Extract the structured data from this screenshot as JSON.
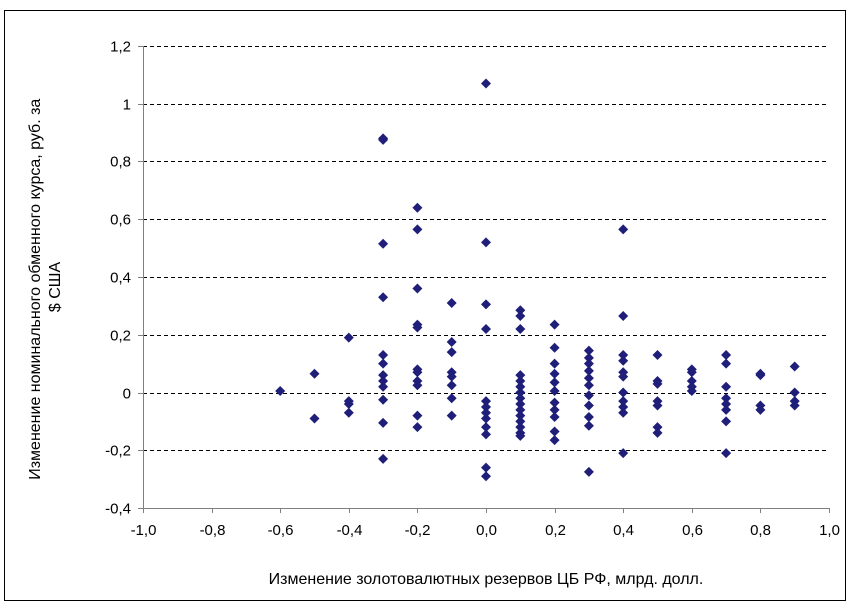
{
  "chart_data": {
    "type": "scatter",
    "title": "",
    "xlabel": "Изменение золотовалютных резервов ЦБ РФ, млрд. долл.",
    "ylabel_lines": [
      "Изменение номинального обменного курса, руб. за",
      "$ США"
    ],
    "xlim": [
      -1.0,
      1.0
    ],
    "ylim": [
      -0.4,
      1.2
    ],
    "x_ticks": [
      -1.0,
      -0.8,
      -0.6,
      -0.4,
      -0.2,
      0.0,
      0.2,
      0.4,
      0.6,
      0.8,
      1.0
    ],
    "x_tick_labels": [
      "-1,0",
      "-0,8",
      "-0,6",
      "-0,4",
      "-0,2",
      "0,0",
      "0,2",
      "0,4",
      "0,6",
      "0,8",
      "1,0"
    ],
    "y_ticks": [
      -0.4,
      -0.2,
      0.0,
      0.2,
      0.4,
      0.6,
      0.8,
      1.0,
      1.2
    ],
    "y_tick_labels": [
      "-0,4",
      "-0,2",
      "0",
      "0,2",
      "0,4",
      "0,6",
      "0,8",
      "1",
      "1,2"
    ],
    "grid": "horizontal-dashed",
    "marker": "diamond",
    "colors": {
      "marker": "#1f1f7a",
      "grid": "#000000",
      "axis": "#808080",
      "frame": "#000000"
    },
    "points": [
      [
        -0.6,
        0.005
      ],
      [
        -0.5,
        0.065
      ],
      [
        -0.5,
        -0.09
      ],
      [
        -0.4,
        0.19
      ],
      [
        -0.4,
        -0.03
      ],
      [
        -0.4,
        -0.04
      ],
      [
        -0.4,
        -0.07
      ],
      [
        -0.3,
        0.88
      ],
      [
        -0.3,
        0.875
      ],
      [
        -0.3,
        0.515
      ],
      [
        -0.3,
        0.33
      ],
      [
        -0.3,
        0.13
      ],
      [
        -0.3,
        0.1
      ],
      [
        -0.3,
        0.06
      ],
      [
        -0.3,
        0.04
      ],
      [
        -0.3,
        0.02
      ],
      [
        -0.3,
        -0.025
      ],
      [
        -0.3,
        -0.105
      ],
      [
        -0.3,
        -0.23
      ],
      [
        -0.2,
        0.64
      ],
      [
        -0.2,
        0.565
      ],
      [
        -0.2,
        0.36
      ],
      [
        -0.2,
        0.235
      ],
      [
        -0.2,
        0.225
      ],
      [
        -0.2,
        0.08
      ],
      [
        -0.2,
        0.07
      ],
      [
        -0.2,
        0.04
      ],
      [
        -0.2,
        0.025
      ],
      [
        -0.2,
        -0.08
      ],
      [
        -0.2,
        -0.12
      ],
      [
        -0.1,
        0.31
      ],
      [
        -0.1,
        0.175
      ],
      [
        -0.1,
        0.14
      ],
      [
        -0.1,
        0.07
      ],
      [
        -0.1,
        0.055
      ],
      [
        -0.1,
        0.025
      ],
      [
        -0.1,
        -0.02
      ],
      [
        -0.1,
        -0.08
      ],
      [
        0.0,
        1.07
      ],
      [
        0.0,
        0.52
      ],
      [
        0.0,
        0.305
      ],
      [
        0.0,
        0.22
      ],
      [
        0.0,
        -0.03
      ],
      [
        0.0,
        -0.05
      ],
      [
        0.0,
        -0.07
      ],
      [
        0.0,
        -0.09
      ],
      [
        0.0,
        -0.12
      ],
      [
        0.0,
        -0.145
      ],
      [
        0.0,
        -0.26
      ],
      [
        0.0,
        -0.29
      ],
      [
        0.1,
        0.285
      ],
      [
        0.1,
        0.265
      ],
      [
        0.1,
        0.22
      ],
      [
        0.1,
        0.06
      ],
      [
        0.1,
        0.04
      ],
      [
        0.1,
        0.02
      ],
      [
        0.1,
        0.0
      ],
      [
        0.1,
        -0.02
      ],
      [
        0.1,
        -0.04
      ],
      [
        0.1,
        -0.06
      ],
      [
        0.1,
        -0.08
      ],
      [
        0.1,
        -0.1
      ],
      [
        0.1,
        -0.12
      ],
      [
        0.1,
        -0.14
      ],
      [
        0.1,
        -0.15
      ],
      [
        0.2,
        0.235
      ],
      [
        0.2,
        0.155
      ],
      [
        0.2,
        0.1
      ],
      [
        0.2,
        0.065
      ],
      [
        0.2,
        0.035
      ],
      [
        0.2,
        0.005
      ],
      [
        0.2,
        -0.035
      ],
      [
        0.2,
        -0.06
      ],
      [
        0.2,
        -0.085
      ],
      [
        0.2,
        -0.135
      ],
      [
        0.2,
        -0.165
      ],
      [
        0.3,
        0.145
      ],
      [
        0.3,
        0.12
      ],
      [
        0.3,
        0.1
      ],
      [
        0.3,
        0.075
      ],
      [
        0.3,
        0.05
      ],
      [
        0.3,
        0.025
      ],
      [
        0.3,
        -0.01
      ],
      [
        0.3,
        -0.045
      ],
      [
        0.3,
        -0.085
      ],
      [
        0.3,
        -0.115
      ],
      [
        0.3,
        -0.275
      ],
      [
        0.4,
        0.565
      ],
      [
        0.4,
        0.265
      ],
      [
        0.4,
        0.13
      ],
      [
        0.4,
        0.11
      ],
      [
        0.4,
        0.07
      ],
      [
        0.4,
        0.055
      ],
      [
        0.4,
        0.0
      ],
      [
        0.4,
        -0.03
      ],
      [
        0.4,
        -0.05
      ],
      [
        0.4,
        -0.07
      ],
      [
        0.4,
        -0.21
      ],
      [
        0.5,
        0.13
      ],
      [
        0.5,
        0.04
      ],
      [
        0.5,
        0.03
      ],
      [
        0.5,
        -0.03
      ],
      [
        0.5,
        -0.045
      ],
      [
        0.5,
        -0.12
      ],
      [
        0.5,
        -0.14
      ],
      [
        0.6,
        0.08
      ],
      [
        0.6,
        0.07
      ],
      [
        0.6,
        0.04
      ],
      [
        0.6,
        0.02
      ],
      [
        0.6,
        0.005
      ],
      [
        0.7,
        0.13
      ],
      [
        0.7,
        0.1
      ],
      [
        0.7,
        0.02
      ],
      [
        0.7,
        -0.02
      ],
      [
        0.7,
        -0.04
      ],
      [
        0.7,
        -0.06
      ],
      [
        0.7,
        -0.1
      ],
      [
        0.7,
        -0.21
      ],
      [
        0.8,
        0.065
      ],
      [
        0.8,
        0.06
      ],
      [
        0.8,
        -0.045
      ],
      [
        0.8,
        -0.06
      ],
      [
        0.9,
        0.09
      ],
      [
        0.9,
        0.0
      ],
      [
        0.9,
        -0.03
      ],
      [
        0.9,
        -0.045
      ]
    ]
  }
}
